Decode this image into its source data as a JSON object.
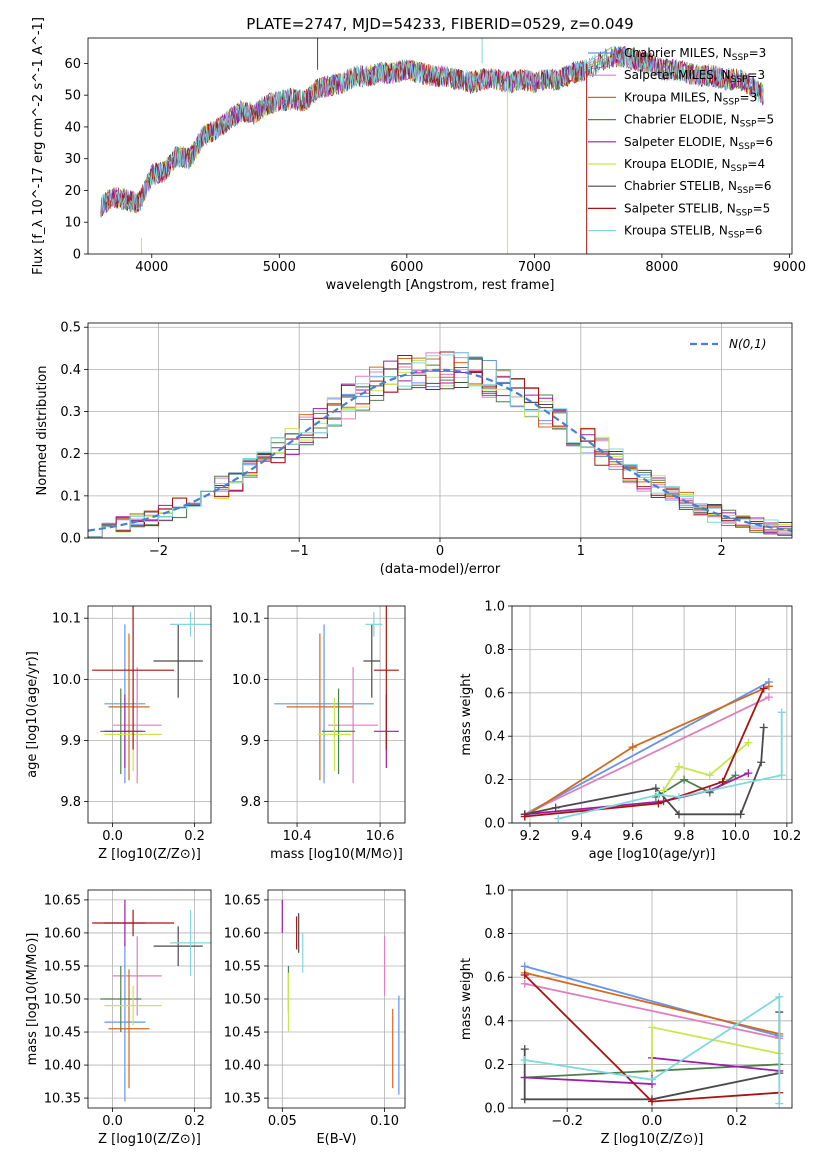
{
  "title": "PLATE=2747, MJD=54233, FIBERID=0529, z=0.049",
  "models": [
    {
      "name": "Chabrier MILES",
      "nssp": "3",
      "color": "#6495ED"
    },
    {
      "name": "Salpeter MILES",
      "nssp": "3",
      "color": "#E07FBF"
    },
    {
      "name": "Kroupa MILES",
      "nssp": "3",
      "color": "#D2691E"
    },
    {
      "name": "Chabrier ELODIE",
      "nssp": "5",
      "color": "#4E7F4E"
    },
    {
      "name": "Salpeter ELODIE",
      "nssp": "6",
      "color": "#9B1FA8"
    },
    {
      "name": "Kroupa ELODIE",
      "nssp": "4",
      "color": "#C8E650"
    },
    {
      "name": "Chabrier STELIB",
      "nssp": "6",
      "color": "#4A4A4A"
    },
    {
      "name": "Salpeter STELIB",
      "nssp": "5",
      "color": "#A81414"
    },
    {
      "name": "Kroupa STELIB",
      "nssp": "6",
      "color": "#7FD8DC"
    }
  ],
  "chart_data": [
    {
      "id": "spectrum",
      "type": "line",
      "xlabel": "wavelength [Angstrom, rest frame]",
      "ylabel": "Flux [f_λ 10^-17 erg cm^-2 s^-1 A^-1]",
      "xlim": [
        3500,
        9020
      ],
      "ylim": [
        0,
        68
      ],
      "xticks": [
        4000,
        5000,
        6000,
        7000,
        8000,
        9000
      ],
      "yticks": [
        0,
        10,
        20,
        30,
        40,
        50,
        60
      ],
      "legend": "top-right",
      "grid": false,
      "x": [
        3600,
        3700,
        3800,
        3900,
        4000,
        4100,
        4200,
        4300,
        4400,
        4500,
        4600,
        4700,
        4800,
        4900,
        5000,
        5100,
        5200,
        5300,
        5400,
        5500,
        5600,
        5700,
        5800,
        5900,
        6000,
        6100,
        6200,
        6300,
        6400,
        6500,
        6600,
        6700,
        6800,
        6900,
        7000,
        7100,
        7200,
        7300,
        7400,
        7500,
        7600,
        7700,
        7800,
        7900,
        8000,
        8100,
        8200,
        8300,
        8400,
        8500,
        8600,
        8700,
        8800
      ],
      "y": [
        15,
        18,
        17,
        16,
        25,
        26,
        31,
        30,
        37,
        39,
        42,
        45,
        44,
        47,
        48,
        49,
        48,
        52,
        53,
        54,
        56,
        56,
        57,
        57,
        58,
        57,
        56,
        56,
        55,
        54,
        55,
        55,
        54,
        55,
        54,
        55,
        55,
        57,
        58,
        60,
        62,
        62,
        61,
        60,
        58,
        58,
        57,
        56,
        56,
        55,
        55,
        53,
        50
      ]
    },
    {
      "id": "residuals",
      "type": "line",
      "xlabel": "(data-model)/error",
      "ylabel": "Normed distribution",
      "xlim": [
        -2.5,
        2.5
      ],
      "ylim": [
        0,
        0.51
      ],
      "xticks": [
        -2,
        -1,
        0,
        1,
        2
      ],
      "yticks": [
        0.0,
        0.1,
        0.2,
        0.3,
        0.4,
        0.5
      ],
      "grid": true,
      "legend": "top-right",
      "reference_label": "N(0,1)"
    },
    {
      "id": "age_vs_Z",
      "type": "scatter",
      "xlabel": "Z [log10(Z/Z⊙)]",
      "ylabel": "age  [log10(age/yr)]",
      "xlim": [
        -0.06,
        0.24
      ],
      "ylim": [
        9.765,
        10.12
      ],
      "xticks": [
        0.0,
        0.2
      ],
      "yticks": [
        9.8,
        9.9,
        10.0,
        10.1
      ],
      "grid": true,
      "points": [
        {
          "x": 0.03,
          "y": 9.96,
          "xerr": 0.05,
          "yerr": 0.13
        },
        {
          "x": 0.06,
          "y": 9.925,
          "xerr": 0.06,
          "yerr": 0.095
        },
        {
          "x": 0.04,
          "y": 9.955,
          "xerr": 0.05,
          "yerr": 0.12
        },
        {
          "x": 0.02,
          "y": 9.915,
          "xerr": 0.05,
          "yerr": 0.07
        },
        {
          "x": 0.03,
          "y": 9.915,
          "xerr": 0.05,
          "yerr": 0.06
        },
        {
          "x": 0.05,
          "y": 9.91,
          "xerr": 0.07,
          "yerr": 0.06
        },
        {
          "x": 0.16,
          "y": 10.03,
          "xerr": 0.06,
          "yerr": 0.06
        },
        {
          "x": 0.05,
          "y": 10.015,
          "xerr": 0.1,
          "yerr": 0.13
        },
        {
          "x": 0.19,
          "y": 10.09,
          "xerr": 0.05,
          "yerr": 0.02
        }
      ]
    },
    {
      "id": "age_vs_mass",
      "type": "scatter",
      "xlabel": "mass [log10(M/M⊙)]",
      "ylabel": "",
      "xlim": [
        10.33,
        10.66
      ],
      "ylim": [
        9.765,
        10.12
      ],
      "xticks": [
        10.4,
        10.6
      ],
      "yticks": [
        9.8,
        9.9,
        10.0,
        10.1
      ],
      "grid": true,
      "points": [
        {
          "x": 10.465,
          "y": 9.96,
          "xerr": 0.12,
          "yerr": 0.13
        },
        {
          "x": 10.535,
          "y": 9.925,
          "xerr": 0.06,
          "yerr": 0.095
        },
        {
          "x": 10.455,
          "y": 9.955,
          "xerr": 0.08,
          "yerr": 0.12
        },
        {
          "x": 10.5,
          "y": 9.915,
          "xerr": 0.04,
          "yerr": 0.07
        },
        {
          "x": 10.615,
          "y": 9.915,
          "xerr": 0.03,
          "yerr": 0.06
        },
        {
          "x": 10.49,
          "y": 9.91,
          "xerr": 0.04,
          "yerr": 0.06
        },
        {
          "x": 10.58,
          "y": 10.03,
          "xerr": 0.02,
          "yerr": 0.06
        },
        {
          "x": 10.615,
          "y": 10.015,
          "xerr": 0.03,
          "yerr": 0.13
        },
        {
          "x": 10.585,
          "y": 10.09,
          "xerr": 0.02,
          "yerr": 0.02
        }
      ]
    },
    {
      "id": "weight_vs_age",
      "type": "line",
      "xlabel": "age  [log10(age/yr)]",
      "ylabel": "mass weight",
      "xlim": [
        9.13,
        10.22
      ],
      "ylim": [
        0,
        1.0
      ],
      "xticks": [
        9.2,
        9.4,
        9.6,
        9.8,
        10.0,
        10.2
      ],
      "yticks": [
        0.0,
        0.2,
        0.4,
        0.6,
        0.8,
        1.0
      ],
      "grid": true,
      "series": [
        {
          "x": [
            9.18,
            10.13
          ],
          "y": [
            0.04,
            0.65
          ]
        },
        {
          "x": [
            9.18,
            10.13
          ],
          "y": [
            0.04,
            0.58
          ]
        },
        {
          "x": [
            9.18,
            9.6,
            10.13
          ],
          "y": [
            0.03,
            0.35,
            0.63
          ]
        },
        {
          "x": [
            9.69,
            9.8,
            9.9,
            10.0
          ],
          "y": [
            0.12,
            0.2,
            0.14,
            0.22
          ]
        },
        {
          "x": [
            9.18,
            9.72,
            9.9,
            10.05
          ],
          "y": [
            0.04,
            0.1,
            0.15,
            0.23
          ]
        },
        {
          "x": [
            9.72,
            9.78,
            9.9,
            10.05
          ],
          "y": [
            0.15,
            0.26,
            0.22,
            0.37
          ]
        },
        {
          "x": [
            9.18,
            9.3,
            9.69,
            9.78,
            10.02,
            10.1,
            10.11
          ],
          "y": [
            0.04,
            0.07,
            0.16,
            0.04,
            0.04,
            0.28,
            0.44
          ]
        },
        {
          "x": [
            9.18,
            9.7,
            9.95,
            10.11
          ],
          "y": [
            0.03,
            0.09,
            0.19,
            0.62
          ]
        },
        {
          "x": [
            9.31,
            9.7,
            9.78,
            10.18,
            10.18
          ],
          "y": [
            0.02,
            0.13,
            0.12,
            0.22,
            0.51
          ]
        }
      ]
    },
    {
      "id": "mass_vs_Z",
      "type": "scatter",
      "xlabel": "Z [log10(Z/Z⊙)]",
      "ylabel": "mass [log10(M/M⊙)]",
      "xlim": [
        -0.06,
        0.24
      ],
      "ylim": [
        10.335,
        10.665
      ],
      "xticks": [
        0.0,
        0.2
      ],
      "yticks": [
        10.35,
        10.4,
        10.45,
        10.5,
        10.55,
        10.6,
        10.65
      ],
      "grid": true,
      "points": [
        {
          "x": 0.03,
          "y": 10.465,
          "xerr": 0.05,
          "yerr": 0.12
        },
        {
          "x": 0.06,
          "y": 10.535,
          "xerr": 0.06,
          "yerr": 0.06
        },
        {
          "x": 0.04,
          "y": 10.455,
          "xerr": 0.05,
          "yerr": 0.09
        },
        {
          "x": 0.02,
          "y": 10.5,
          "xerr": 0.05,
          "yerr": 0.05
        },
        {
          "x": 0.03,
          "y": 10.615,
          "xerr": 0.05,
          "yerr": 0.035
        },
        {
          "x": 0.05,
          "y": 10.49,
          "xerr": 0.07,
          "yerr": 0.03
        },
        {
          "x": 0.16,
          "y": 10.58,
          "xerr": 0.06,
          "yerr": 0.03
        },
        {
          "x": 0.05,
          "y": 10.615,
          "xerr": 0.1,
          "yerr": 0.02
        },
        {
          "x": 0.19,
          "y": 10.585,
          "xerr": 0.05,
          "yerr": 0.05
        }
      ]
    },
    {
      "id": "mass_vs_ebv",
      "type": "scatter",
      "xlabel": "E(B-V)",
      "ylabel": "",
      "xlim": [
        0.043,
        0.11
      ],
      "ylim": [
        10.335,
        10.665
      ],
      "xticks": [
        0.05,
        0.1
      ],
      "yticks": [
        10.35,
        10.4,
        10.45,
        10.5,
        10.55,
        10.6,
        10.65
      ],
      "grid": true,
      "points": [
        {
          "x": 0.107,
          "y": 10.43,
          "yerr": 0.075
        },
        {
          "x": 0.1,
          "y": 10.55,
          "yerr": 0.045
        },
        {
          "x": 0.104,
          "y": 10.425,
          "yerr": 0.06
        },
        {
          "x": 0.053,
          "y": 10.515,
          "yerr": 0.035
        },
        {
          "x": 0.05,
          "y": 10.625,
          "yerr": 0.025
        },
        {
          "x": 0.053,
          "y": 10.495,
          "yerr": 0.045
        },
        {
          "x": 0.058,
          "y": 10.6,
          "yerr": 0.03
        },
        {
          "x": 0.057,
          "y": 10.6,
          "yerr": 0.025
        },
        {
          "x": 0.06,
          "y": 10.57,
          "yerr": 0.03
        }
      ]
    },
    {
      "id": "weight_vs_Z",
      "type": "line",
      "xlabel": "Z [log10(Z/Z⊙)]",
      "ylabel": "mass weight",
      "xlim": [
        -0.33,
        0.33
      ],
      "ylim": [
        0,
        1.0
      ],
      "xticks": [
        -0.2,
        0.0,
        0.2
      ],
      "yticks": [
        0.0,
        0.2,
        0.4,
        0.6,
        0.8,
        1.0
      ],
      "grid": true,
      "series": [
        {
          "x": [
            -0.3,
            0.3
          ],
          "y": [
            0.65,
            0.33
          ]
        },
        {
          "x": [
            -0.3,
            0.3
          ],
          "y": [
            0.57,
            0.32
          ]
        },
        {
          "x": [
            -0.3,
            0.3
          ],
          "y": [
            0.62,
            0.34
          ]
        },
        {
          "x": [
            -0.3,
            0.3
          ],
          "y": [
            0.14,
            0.2
          ]
        },
        {
          "x": [
            -0.3,
            0.0,
            0.0,
            0.3
          ],
          "y": [
            0.14,
            0.11,
            0.23,
            0.17
          ]
        },
        {
          "x": [
            0.0,
            0.0,
            0.3
          ],
          "y": [
            0.17,
            0.37,
            0.25
          ]
        },
        {
          "x": [
            -0.3,
            -0.3,
            0.0,
            0.3,
            0.3
          ],
          "y": [
            0.27,
            0.04,
            0.04,
            0.16,
            0.44
          ]
        },
        {
          "x": [
            -0.3,
            0.0,
            0.3
          ],
          "y": [
            0.61,
            0.03,
            0.07
          ]
        },
        {
          "x": [
            -0.3,
            0.0,
            0.3,
            0.3
          ],
          "y": [
            0.22,
            0.13,
            0.51,
            0.02
          ]
        }
      ]
    }
  ]
}
